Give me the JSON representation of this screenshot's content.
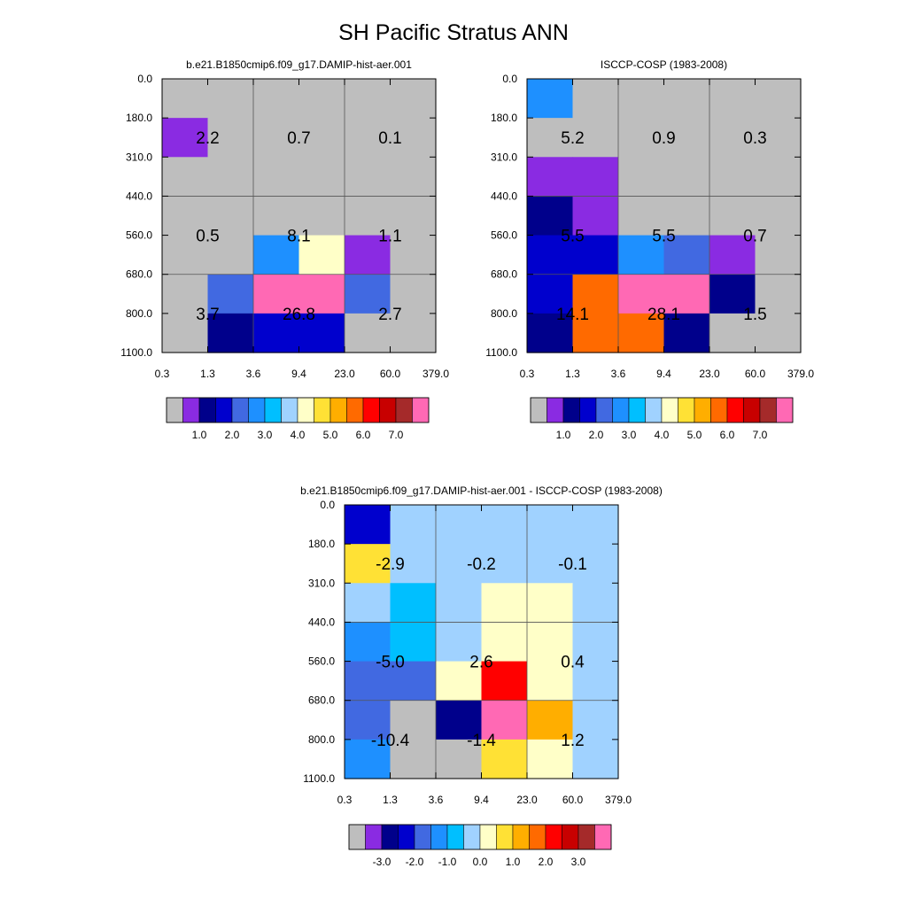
{
  "title": "SH Pacific Stratus ANN",
  "palette": {
    "model_obs": [
      "#bebebe",
      "#8a2be2",
      "#00008b",
      "#0000cd",
      "#4169e1",
      "#1e90ff",
      "#00bfff",
      "#a0d2ff",
      "#ffffc8",
      "#ffe135",
      "#ffae00",
      "#ff6a00",
      "#ff0000",
      "#c80000",
      "#a52a2a",
      "#ff69b4"
    ],
    "diff": [
      "#bebebe",
      "#8a2be2",
      "#00008b",
      "#0000cd",
      "#4169e1",
      "#1e90ff",
      "#00bfff",
      "#a0d2ff",
      "#ffffc8",
      "#ffe135",
      "#ffae00",
      "#ff6a00",
      "#ff0000",
      "#c80000",
      "#a52a2a",
      "#ff69b4"
    ]
  },
  "chart_data": [
    {
      "type": "heatmap",
      "title": "b.e21.B1850cmip6.f09_g17.DAMIP-hist-aer.001",
      "x_ticks": [
        "0.3",
        "1.3",
        "3.6",
        "9.4",
        "23.0",
        "60.0",
        "379.0"
      ],
      "y_ticks": [
        "0.0",
        "180.0",
        "310.0",
        "440.0",
        "560.0",
        "680.0",
        "800.0",
        "1100.0"
      ],
      "cells": [
        [
          0,
          0,
          0,
          0,
          0,
          0
        ],
        [
          1,
          0,
          0,
          0,
          0,
          0
        ],
        [
          0,
          0,
          0,
          0,
          0,
          0
        ],
        [
          0,
          0,
          0,
          0,
          0,
          0
        ],
        [
          0,
          0,
          5,
          8,
          1,
          0
        ],
        [
          0,
          4,
          15,
          15,
          4,
          0
        ],
        [
          0,
          2,
          3,
          3,
          0,
          0
        ]
      ],
      "group_labels": [
        [
          "2.2",
          "0.7",
          "0.1"
        ],
        [
          "0.5",
          "8.1",
          "1.1"
        ],
        [
          "3.7",
          "26.8",
          "2.7"
        ]
      ],
      "colorbar_labels": [
        "1.0",
        "2.0",
        "3.0",
        "4.0",
        "5.0",
        "6.0",
        "7.0"
      ]
    },
    {
      "type": "heatmap",
      "title": "ISCCP-COSP (1983-2008)",
      "x_ticks": [
        "0.3",
        "1.3",
        "3.6",
        "9.4",
        "23.0",
        "60.0",
        "379.0"
      ],
      "y_ticks": [
        "0.0",
        "180.0",
        "310.0",
        "440.0",
        "560.0",
        "680.0",
        "800.0",
        "1100.0"
      ],
      "cells": [
        [
          5,
          0,
          0,
          0,
          0,
          0
        ],
        [
          0,
          0,
          0,
          0,
          0,
          0
        ],
        [
          1,
          1,
          0,
          0,
          0,
          0
        ],
        [
          2,
          1,
          0,
          0,
          0,
          0
        ],
        [
          3,
          3,
          5,
          4,
          1,
          0
        ],
        [
          3,
          11,
          15,
          15,
          2,
          0
        ],
        [
          2,
          11,
          11,
          2,
          0,
          0
        ]
      ],
      "group_labels": [
        [
          "5.2",
          "0.9",
          "0.3"
        ],
        [
          "5.5",
          "5.5",
          "0.7"
        ],
        [
          "14.1",
          "28.1",
          "1.5"
        ]
      ],
      "colorbar_labels": [
        "1.0",
        "2.0",
        "3.0",
        "4.0",
        "5.0",
        "6.0",
        "7.0"
      ]
    },
    {
      "type": "heatmap",
      "title": "b.e21.B1850cmip6.f09_g17.DAMIP-hist-aer.001 - ISCCP-COSP (1983-2008)",
      "x_ticks": [
        "0.3",
        "1.3",
        "3.6",
        "9.4",
        "23.0",
        "60.0",
        "379.0"
      ],
      "y_ticks": [
        "0.0",
        "180.0",
        "310.0",
        "440.0",
        "560.0",
        "680.0",
        "800.0",
        "1100.0"
      ],
      "cells": [
        [
          3,
          7,
          7,
          7,
          7,
          7
        ],
        [
          9,
          7,
          7,
          7,
          7,
          7
        ],
        [
          7,
          6,
          7,
          8,
          8,
          7
        ],
        [
          5,
          6,
          7,
          8,
          8,
          7
        ],
        [
          4,
          4,
          8,
          12,
          8,
          7
        ],
        [
          4,
          0,
          2,
          15,
          10,
          7
        ],
        [
          5,
          0,
          0,
          9,
          8,
          7
        ]
      ],
      "group_labels": [
        [
          "-2.9",
          "-0.2",
          "-0.1"
        ],
        [
          "-5.0",
          "2.6",
          "0.4"
        ],
        [
          "-10.4",
          "-1.4",
          "1.2"
        ]
      ],
      "colorbar_labels": [
        "-3.0",
        "-2.0",
        "-1.0",
        "0.0",
        "1.0",
        "2.0",
        "3.0"
      ]
    }
  ]
}
